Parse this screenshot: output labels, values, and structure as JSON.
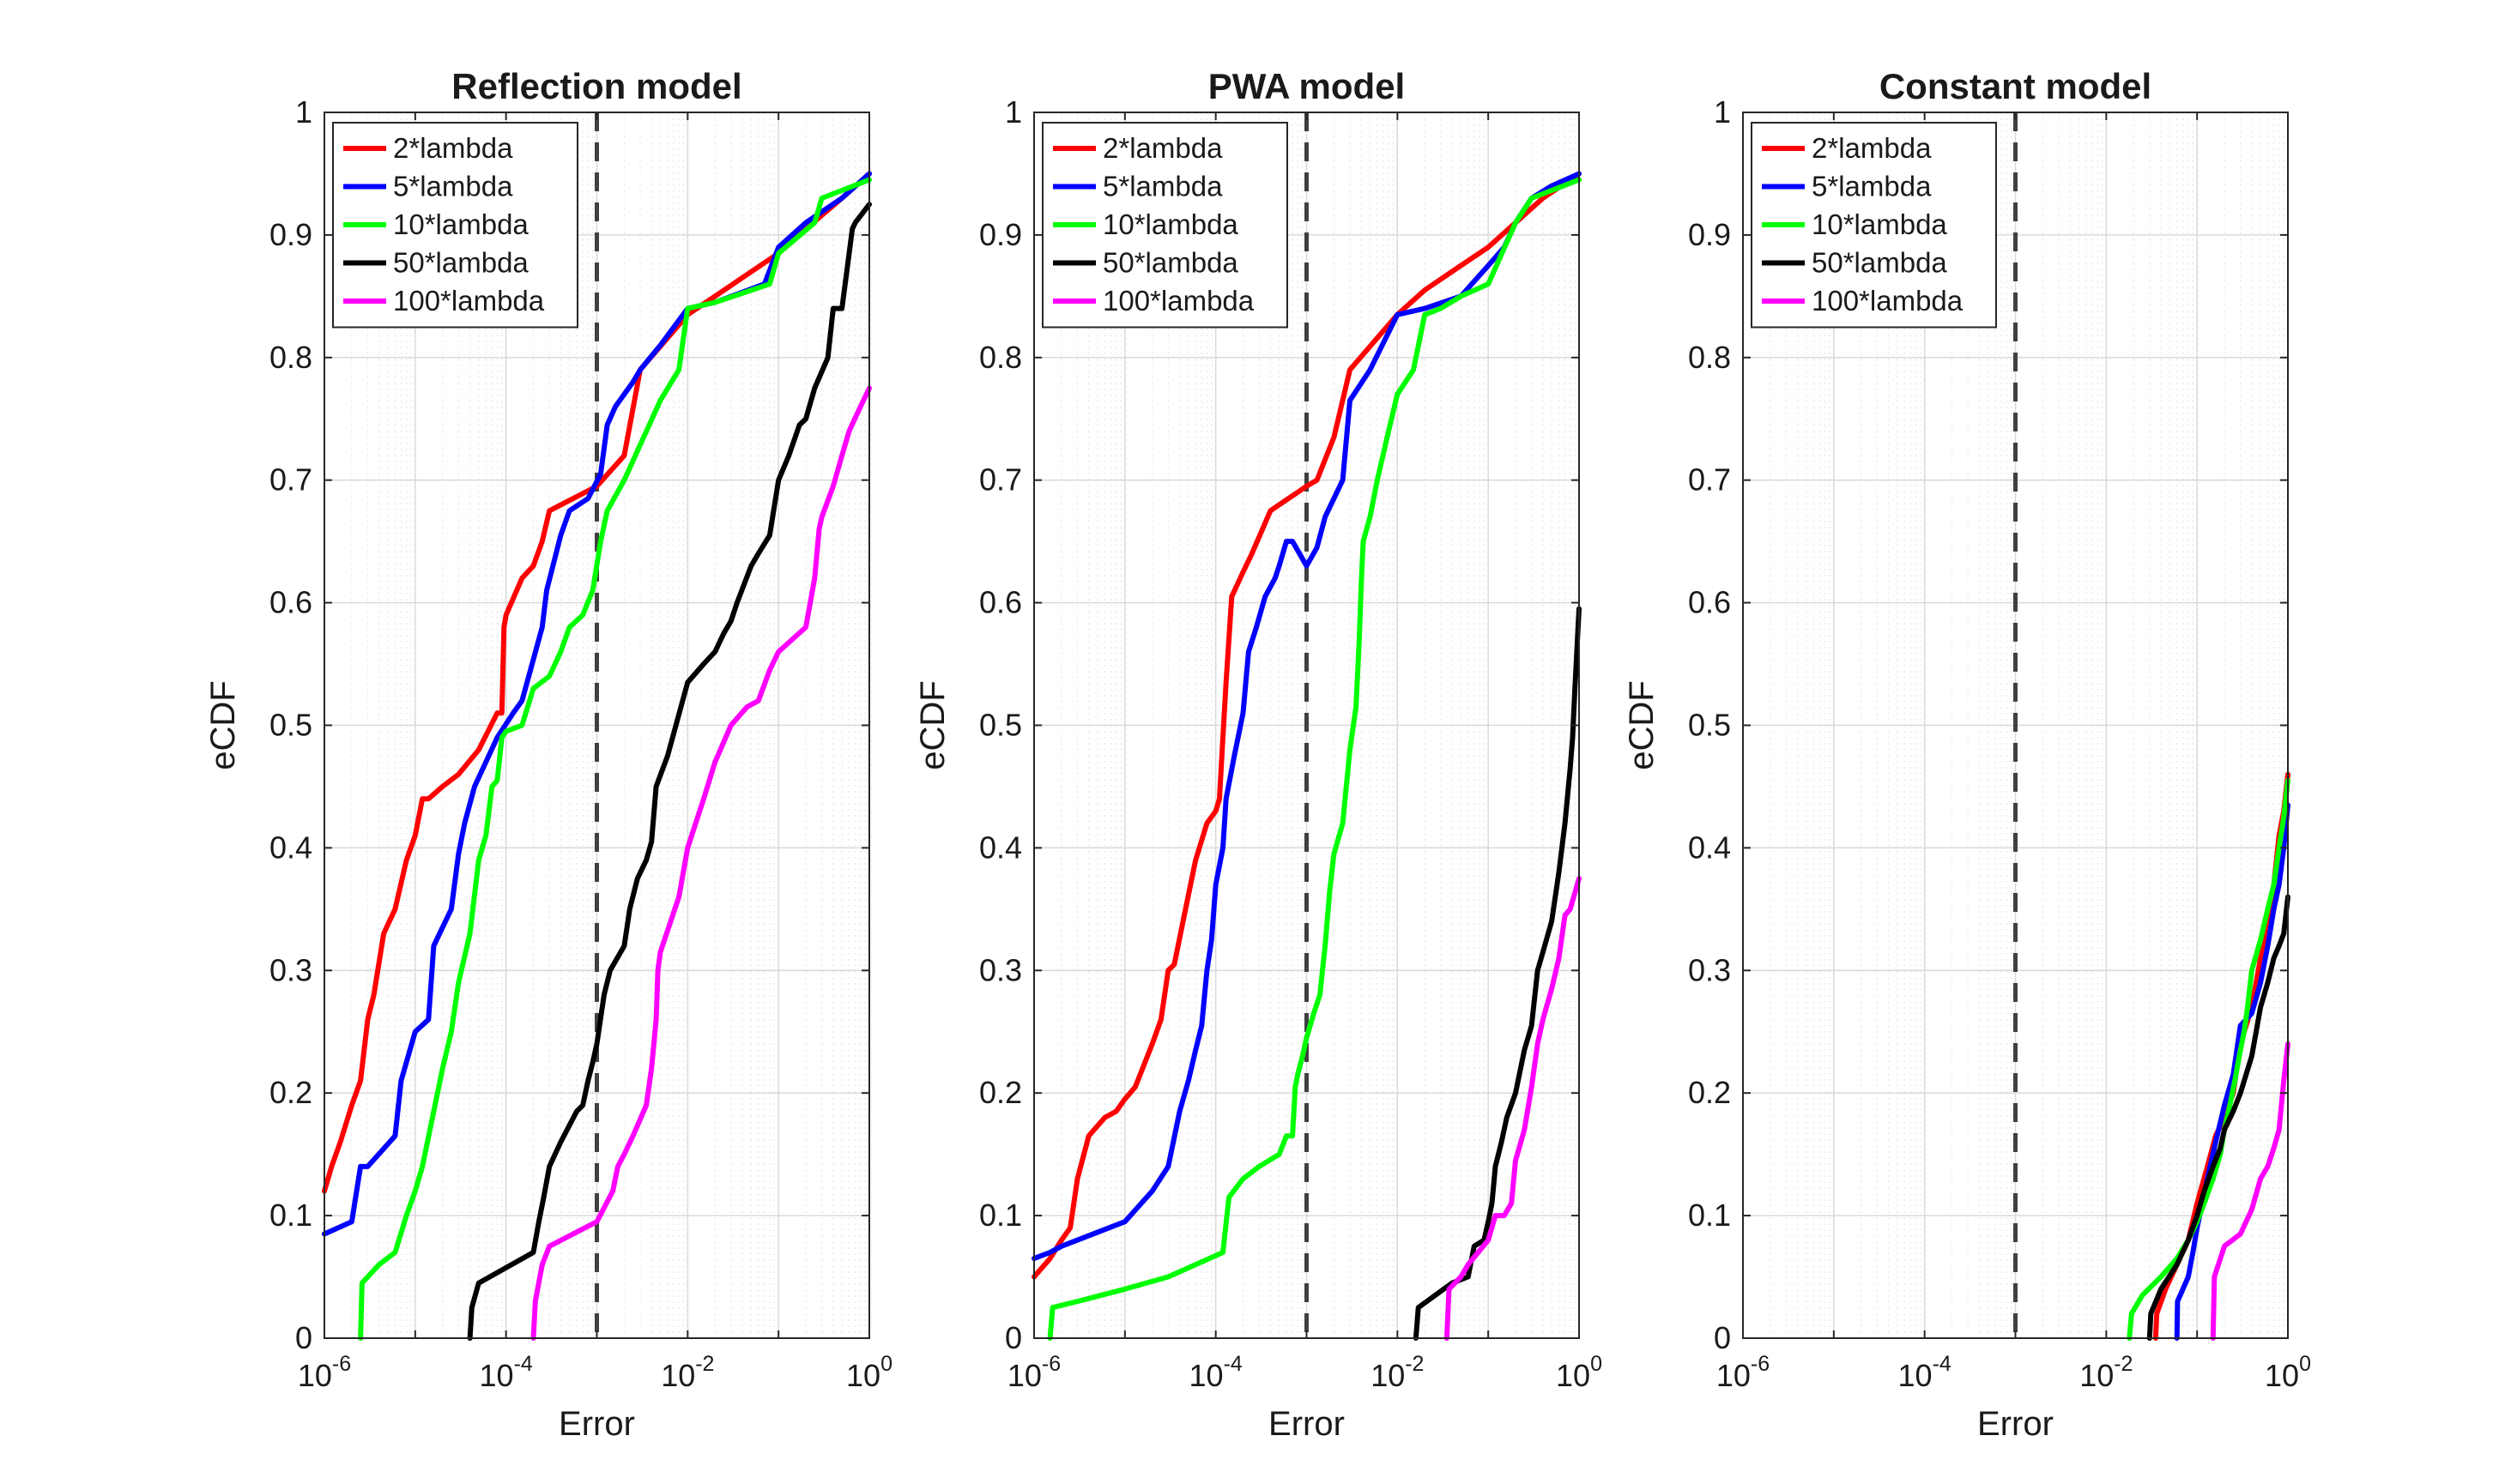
{
  "colors": {
    "2*lambda": "#ff0000",
    "5*lambda": "#0000ff",
    "10*lambda": "#00ff00",
    "50*lambda": "#000000",
    "100*lambda": "#ff00ff",
    "threshold": "#404040"
  },
  "chart_data": [
    {
      "type": "line",
      "title": "Reflection model",
      "xlabel": "Error",
      "ylabel": "eCDF",
      "xscale": "log",
      "xlim": [
        1e-06,
        1
      ],
      "ylim": [
        0,
        1
      ],
      "grid": true,
      "legend_position": "top-left",
      "threshold_x": 0.001,
      "series": [
        {
          "name": "2*lambda",
          "x": [
            1e-06,
            1.2e-06,
            1.5e-06,
            2e-06,
            2.5e-06,
            3e-06,
            3.5e-06,
            4.5e-06,
            6e-06,
            8e-06,
            1e-05,
            1.2e-05,
            1.4e-05,
            2e-05,
            3e-05,
            5e-05,
            8e-05,
            9e-05,
            9.5e-05,
            0.0001,
            0.00015,
            0.0002,
            0.00025,
            0.0003,
            0.001,
            0.002,
            0.003,
            0.01,
            0.02,
            0.05,
            0.1,
            0.2,
            0.5,
            1
          ],
          "y": [
            0.12,
            0.14,
            0.16,
            0.19,
            0.21,
            0.26,
            0.28,
            0.33,
            0.35,
            0.39,
            0.41,
            0.44,
            0.44,
            0.45,
            0.46,
            0.48,
            0.51,
            0.51,
            0.58,
            0.59,
            0.62,
            0.63,
            0.65,
            0.675,
            0.695,
            0.72,
            0.79,
            0.835,
            0.85,
            0.87,
            0.885,
            0.905,
            0.93,
            0.95
          ]
        },
        {
          "name": "5*lambda",
          "x": [
            1e-06,
            2e-06,
            2.5e-06,
            3e-06,
            6e-06,
            7e-06,
            1e-05,
            1.4e-05,
            1.6e-05,
            2.5e-05,
            3e-05,
            3.5e-05,
            4.5e-05,
            6e-05,
            8e-05,
            0.00012,
            0.00015,
            0.00025,
            0.00028,
            0.0004,
            0.0005,
            0.0008,
            0.0011,
            0.0013,
            0.0016,
            0.0025,
            0.003,
            0.005,
            0.01,
            0.02,
            0.07,
            0.1,
            0.2,
            0.5,
            1
          ],
          "y": [
            0.085,
            0.095,
            0.14,
            0.14,
            0.165,
            0.21,
            0.25,
            0.26,
            0.32,
            0.35,
            0.395,
            0.42,
            0.45,
            0.47,
            0.49,
            0.51,
            0.52,
            0.58,
            0.61,
            0.655,
            0.675,
            0.685,
            0.705,
            0.745,
            0.76,
            0.78,
            0.79,
            0.81,
            0.84,
            0.845,
            0.86,
            0.89,
            0.91,
            0.93,
            0.95
          ]
        },
        {
          "name": "10*lambda",
          "x": [
            2.5e-06,
            2.6e-06,
            3e-06,
            4e-06,
            6e-06,
            8e-06,
            1e-05,
            1.2e-05,
            1.5e-05,
            2e-05,
            2.5e-05,
            3e-05,
            4e-05,
            5e-05,
            6e-05,
            7e-05,
            8e-05,
            9e-05,
            0.0001,
            0.00015,
            0.0002,
            0.0003,
            0.0004,
            0.0005,
            0.0007,
            0.0009,
            0.0011,
            0.0013,
            0.002,
            0.005,
            0.008,
            0.01,
            0.02,
            0.08,
            0.1,
            0.25,
            0.3,
            1
          ],
          "y": [
            0,
            0.045,
            0.05,
            0.06,
            0.07,
            0.1,
            0.12,
            0.14,
            0.175,
            0.22,
            0.25,
            0.29,
            0.33,
            0.39,
            0.41,
            0.45,
            0.455,
            0.49,
            0.495,
            0.5,
            0.53,
            0.54,
            0.56,
            0.58,
            0.59,
            0.61,
            0.65,
            0.675,
            0.7,
            0.765,
            0.79,
            0.84,
            0.845,
            0.86,
            0.885,
            0.91,
            0.93,
            0.945
          ]
        },
        {
          "name": "50*lambda",
          "x": [
            4e-05,
            4.2e-05,
            5e-05,
            0.0002,
            0.00023,
            0.00026,
            0.0003,
            0.0004,
            0.0006,
            0.0007,
            0.0008,
            0.0009,
            0.001,
            0.0012,
            0.0014,
            0.002,
            0.0023,
            0.0028,
            0.0035,
            0.004,
            0.0045,
            0.006,
            0.01,
            0.015,
            0.02,
            0.025,
            0.03,
            0.035,
            0.05,
            0.06,
            0.08,
            0.1,
            0.13,
            0.17,
            0.2,
            0.25,
            0.35,
            0.4,
            0.5,
            0.6,
            0.65,
            0.7,
            1
          ],
          "y": [
            0,
            0.025,
            0.045,
            0.07,
            0.095,
            0.115,
            0.14,
            0.16,
            0.185,
            0.19,
            0.21,
            0.225,
            0.24,
            0.28,
            0.3,
            0.32,
            0.35,
            0.375,
            0.39,
            0.405,
            0.45,
            0.475,
            0.535,
            0.55,
            0.56,
            0.575,
            0.585,
            0.6,
            0.63,
            0.64,
            0.655,
            0.7,
            0.72,
            0.745,
            0.75,
            0.775,
            0.8,
            0.84,
            0.84,
            0.885,
            0.905,
            0.91,
            0.925
          ]
        },
        {
          "name": "100*lambda",
          "x": [
            0.0002,
            0.00021,
            0.00025,
            0.0003,
            0.001,
            0.0015,
            0.0017,
            0.002,
            0.0025,
            0.0035,
            0.004,
            0.0045,
            0.0047,
            0.005,
            0.008,
            0.01,
            0.015,
            0.02,
            0.03,
            0.045,
            0.06,
            0.08,
            0.1,
            0.2,
            0.25,
            0.28,
            0.3,
            0.4,
            0.5,
            0.6,
            0.8,
            1
          ],
          "y": [
            0,
            0.03,
            0.06,
            0.075,
            0.095,
            0.12,
            0.14,
            0.15,
            0.165,
            0.19,
            0.22,
            0.26,
            0.3,
            0.315,
            0.36,
            0.4,
            0.44,
            0.47,
            0.5,
            0.515,
            0.52,
            0.545,
            0.56,
            0.58,
            0.62,
            0.66,
            0.67,
            0.695,
            0.72,
            0.74,
            0.76,
            0.775
          ]
        }
      ]
    },
    {
      "type": "line",
      "title": "PWA model",
      "xlabel": "Error",
      "ylabel": "eCDF",
      "xscale": "log",
      "xlim": [
        1e-06,
        1
      ],
      "ylim": [
        0,
        1
      ],
      "grid": true,
      "legend_position": "top-left",
      "threshold_x": 0.001,
      "series": [
        {
          "name": "2*lambda",
          "x": [
            1e-06,
            1.5e-06,
            2e-06,
            2.5e-06,
            3e-06,
            4e-06,
            6e-06,
            8e-06,
            1e-05,
            1.3e-05,
            2e-05,
            2.5e-05,
            3e-05,
            3.5e-05,
            4.5e-05,
            6e-05,
            8e-05,
            0.0001,
            0.00011,
            0.00012,
            0.00013,
            0.00015,
            0.0002,
            0.00025,
            0.0004,
            0.001,
            0.0013,
            0.002,
            0.003,
            0.01,
            0.02,
            0.05,
            0.1,
            0.2,
            0.4,
            1
          ],
          "y": [
            0.05,
            0.065,
            0.08,
            0.09,
            0.13,
            0.165,
            0.18,
            0.185,
            0.195,
            0.205,
            0.24,
            0.26,
            0.3,
            0.305,
            0.345,
            0.39,
            0.42,
            0.43,
            0.44,
            0.49,
            0.535,
            0.605,
            0.625,
            0.64,
            0.675,
            0.695,
            0.7,
            0.735,
            0.79,
            0.835,
            0.855,
            0.875,
            0.89,
            0.91,
            0.93,
            0.95
          ]
        },
        {
          "name": "5*lambda",
          "x": [
            1e-06,
            1.5e-06,
            2e-06,
            1e-05,
            2e-05,
            3e-05,
            4e-05,
            5e-05,
            6e-05,
            7e-05,
            8e-05,
            9e-05,
            0.0001,
            0.00012,
            0.00013,
            0.00016,
            0.0002,
            0.00023,
            0.00028,
            0.00035,
            0.00045,
            0.0005,
            0.0006,
            0.0007,
            0.001,
            0.0013,
            0.0016,
            0.002,
            0.0025,
            0.003,
            0.005,
            0.01,
            0.02,
            0.05,
            0.1,
            0.15,
            0.2,
            0.3,
            0.5,
            1
          ],
          "y": [
            0.065,
            0.07,
            0.075,
            0.095,
            0.12,
            0.14,
            0.185,
            0.21,
            0.235,
            0.255,
            0.3,
            0.325,
            0.37,
            0.4,
            0.44,
            0.475,
            0.51,
            0.56,
            0.58,
            0.605,
            0.62,
            0.63,
            0.65,
            0.65,
            0.63,
            0.645,
            0.67,
            0.685,
            0.7,
            0.765,
            0.79,
            0.835,
            0.84,
            0.85,
            0.875,
            0.89,
            0.91,
            0.93,
            0.94,
            0.95
          ]
        },
        {
          "name": "10*lambda",
          "x": [
            1.5e-06,
            1.6e-06,
            3e-06,
            1e-05,
            3e-05,
            6e-05,
            0.00012,
            0.00014,
            0.0002,
            0.0003,
            0.0005,
            0.0006,
            0.0007,
            0.00075,
            0.0008,
            0.0009,
            0.001,
            0.0012,
            0.0014,
            0.0016,
            0.0018,
            0.002,
            0.0025,
            0.003,
            0.0035,
            0.0038,
            0.004,
            0.0042,
            0.005,
            0.006,
            0.008,
            0.01,
            0.015,
            0.02,
            0.03,
            0.05,
            0.1,
            0.2,
            0.3,
            1
          ],
          "y": [
            0,
            0.025,
            0.03,
            0.04,
            0.05,
            0.06,
            0.07,
            0.115,
            0.13,
            0.14,
            0.15,
            0.165,
            0.165,
            0.205,
            0.215,
            0.23,
            0.245,
            0.265,
            0.28,
            0.32,
            0.365,
            0.395,
            0.42,
            0.48,
            0.515,
            0.57,
            0.615,
            0.65,
            0.67,
            0.7,
            0.74,
            0.77,
            0.79,
            0.835,
            0.84,
            0.85,
            0.86,
            0.91,
            0.93,
            0.945
          ]
        },
        {
          "name": "50*lambda",
          "x": [
            0.016,
            0.017,
            0.04,
            0.06,
            0.07,
            0.09,
            0.1,
            0.11,
            0.12,
            0.14,
            0.16,
            0.2,
            0.25,
            0.3,
            0.35,
            0.4,
            0.5,
            0.6,
            0.7,
            0.8,
            0.85,
            0.9,
            1
          ],
          "y": [
            0,
            0.025,
            0.045,
            0.05,
            0.075,
            0.08,
            0.095,
            0.11,
            0.14,
            0.16,
            0.18,
            0.2,
            0.235,
            0.255,
            0.3,
            0.315,
            0.34,
            0.38,
            0.42,
            0.465,
            0.49,
            0.53,
            0.595
          ]
        },
        {
          "name": "100*lambda",
          "x": [
            0.035,
            0.037,
            0.05,
            0.06,
            0.1,
            0.12,
            0.15,
            0.18,
            0.2,
            0.25,
            0.3,
            0.35,
            0.4,
            0.5,
            0.6,
            0.7,
            0.8,
            1
          ],
          "y": [
            0,
            0.04,
            0.05,
            0.06,
            0.08,
            0.1,
            0.1,
            0.11,
            0.145,
            0.17,
            0.205,
            0.24,
            0.26,
            0.285,
            0.31,
            0.345,
            0.35,
            0.375
          ]
        }
      ]
    },
    {
      "type": "line",
      "title": "Constant model",
      "xlabel": "Error",
      "ylabel": "eCDF",
      "xscale": "log",
      "xlim": [
        1e-06,
        1
      ],
      "ylim": [
        0,
        1
      ],
      "grid": true,
      "legend_position": "top-left",
      "threshold_x": 0.001,
      "series": [
        {
          "name": "2*lambda",
          "x": [
            0.035,
            0.036,
            0.045,
            0.06,
            0.08,
            0.1,
            0.13,
            0.16,
            0.2,
            0.25,
            0.3,
            0.4,
            0.5,
            0.6,
            0.7,
            0.8,
            0.9,
            1
          ],
          "y": [
            0,
            0.02,
            0.04,
            0.06,
            0.08,
            0.11,
            0.14,
            0.165,
            0.18,
            0.2,
            0.24,
            0.27,
            0.31,
            0.34,
            0.37,
            0.41,
            0.43,
            0.46
          ]
        },
        {
          "name": "5*lambda",
          "x": [
            0.06,
            0.061,
            0.08,
            0.09,
            0.1,
            0.13,
            0.16,
            0.2,
            0.25,
            0.3,
            0.4,
            0.5,
            0.6,
            0.7,
            0.8,
            0.9,
            1
          ],
          "y": [
            0,
            0.03,
            0.05,
            0.07,
            0.09,
            0.13,
            0.16,
            0.19,
            0.215,
            0.255,
            0.265,
            0.29,
            0.32,
            0.35,
            0.37,
            0.4,
            0.435
          ]
        },
        {
          "name": "10*lambda",
          "x": [
            0.018,
            0.019,
            0.025,
            0.04,
            0.06,
            0.08,
            0.1,
            0.12,
            0.15,
            0.18,
            0.2,
            0.23,
            0.26,
            0.3,
            0.33,
            0.36,
            0.4,
            0.5,
            0.6,
            0.7,
            0.8,
            0.9,
            1
          ],
          "y": [
            0,
            0.02,
            0.035,
            0.05,
            0.065,
            0.08,
            0.095,
            0.11,
            0.13,
            0.15,
            0.17,
            0.19,
            0.21,
            0.235,
            0.25,
            0.27,
            0.3,
            0.325,
            0.35,
            0.37,
            0.4,
            0.425,
            0.455
          ]
        },
        {
          "name": "50*lambda",
          "x": [
            0.03,
            0.031,
            0.04,
            0.06,
            0.08,
            0.1,
            0.12,
            0.15,
            0.18,
            0.2,
            0.25,
            0.3,
            0.4,
            0.5,
            0.6,
            0.7,
            0.8,
            0.9,
            1
          ],
          "y": [
            0,
            0.02,
            0.04,
            0.06,
            0.08,
            0.1,
            0.12,
            0.14,
            0.155,
            0.17,
            0.185,
            0.2,
            0.23,
            0.27,
            0.29,
            0.31,
            0.32,
            0.33,
            0.36
          ]
        },
        {
          "name": "100*lambda",
          "x": [
            0.15,
            0.155,
            0.2,
            0.3,
            0.4,
            0.5,
            0.6,
            0.7,
            0.8,
            0.9,
            1
          ],
          "y": [
            0,
            0.05,
            0.075,
            0.085,
            0.105,
            0.13,
            0.14,
            0.155,
            0.17,
            0.21,
            0.24
          ]
        }
      ]
    }
  ]
}
